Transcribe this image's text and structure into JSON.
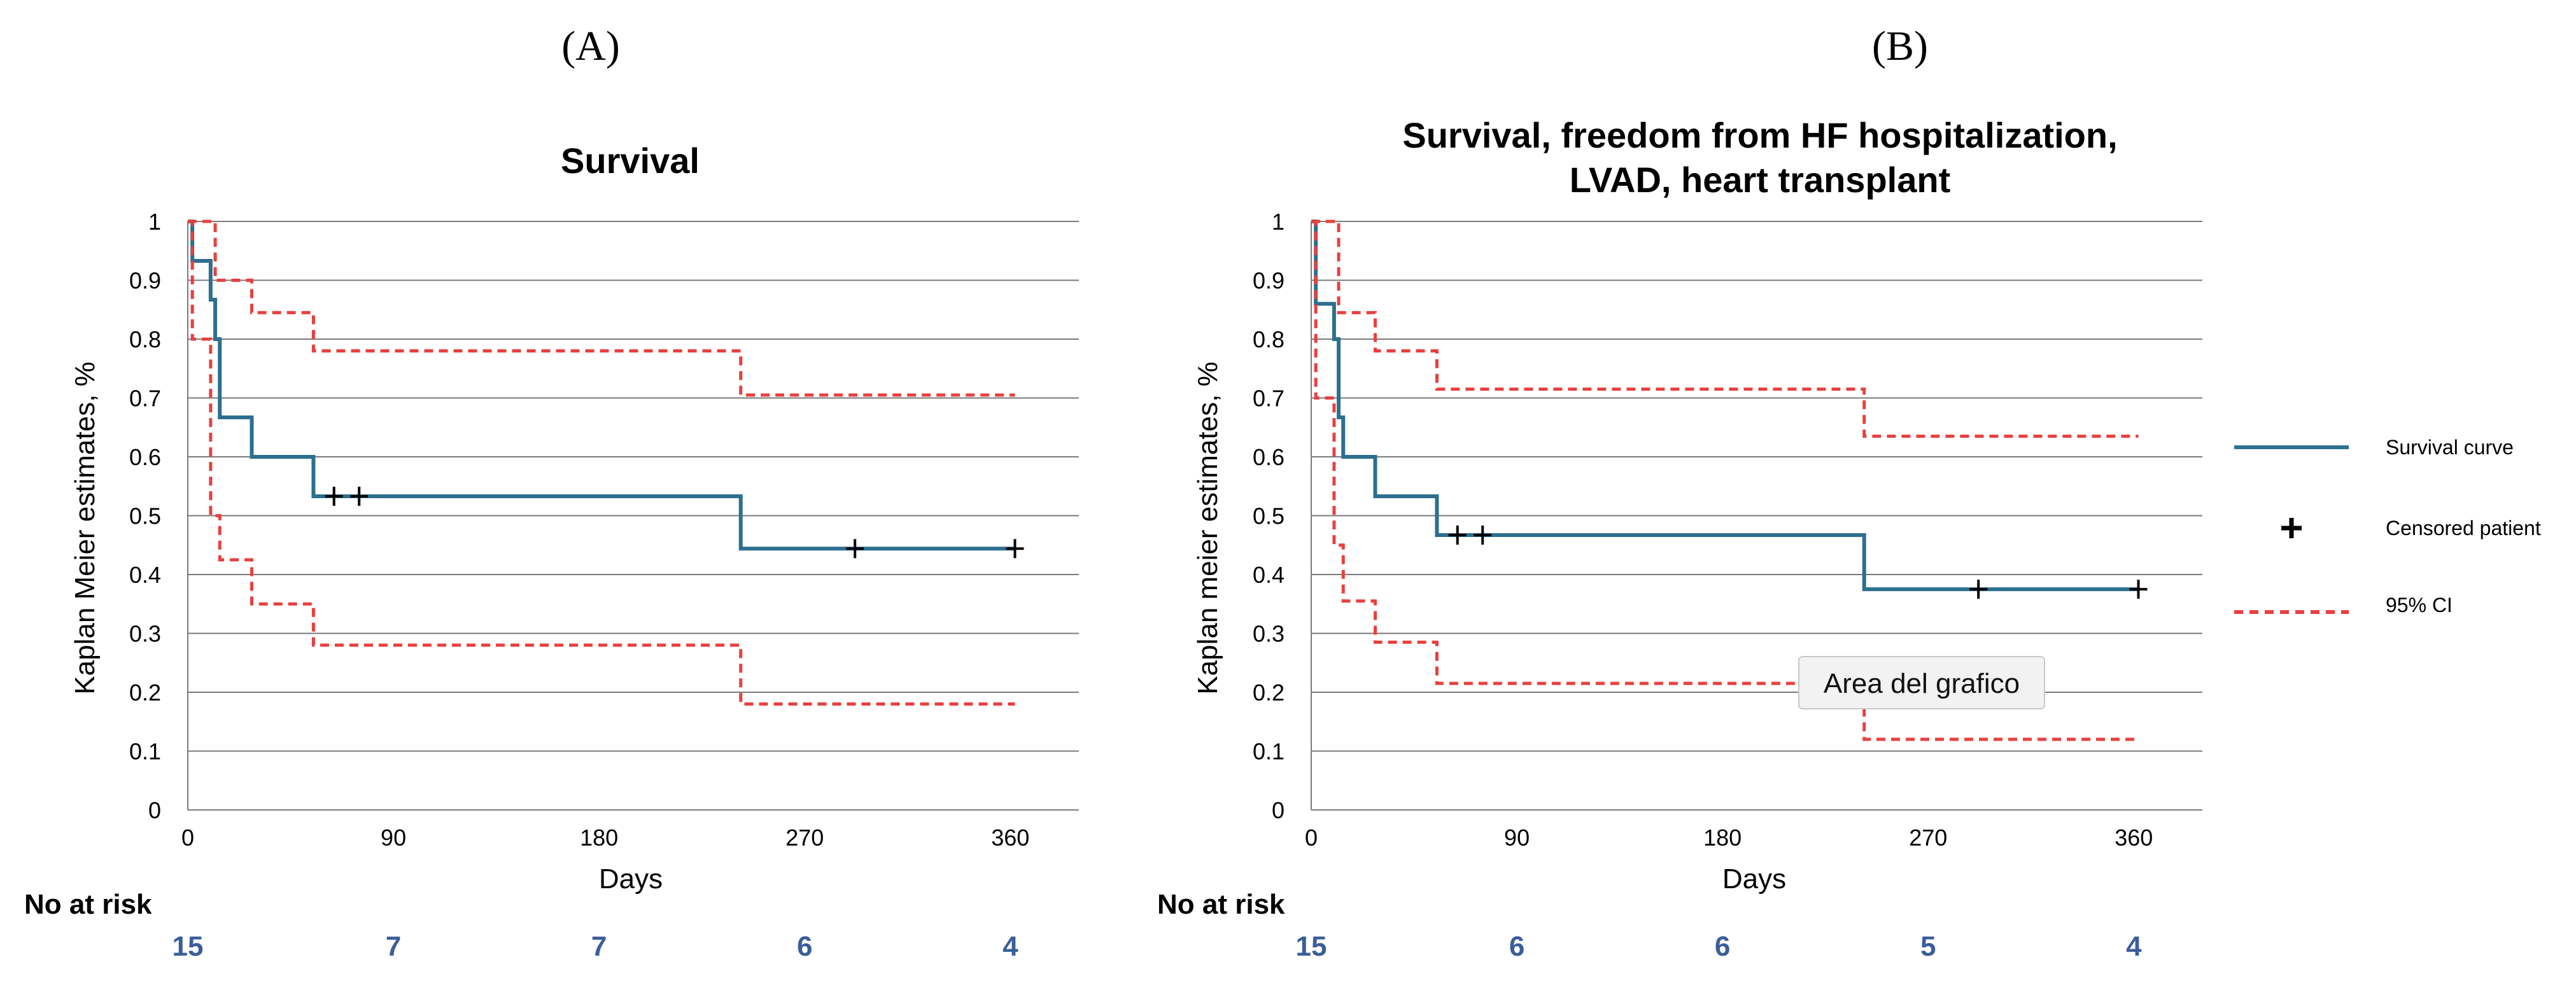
{
  "panels": [
    {
      "label": "(A)"
    },
    {
      "label": "(B)"
    }
  ],
  "legend": {
    "survival": "Survival curve",
    "censored": "Censored patient",
    "ci": "95% CI"
  },
  "tooltip": {
    "text": "Area del grafico"
  },
  "at_risk_header": "No at risk",
  "colors": {
    "survival": "#2c6f8f",
    "ci": "#e8403f",
    "grid": "#7a7a7a",
    "risk": "#3b5e9a"
  },
  "chart_data": [
    {
      "type": "line",
      "title": "Survival",
      "xlabel": "Days",
      "ylabel": "Kaplan Meier estimates, %",
      "xlim": [
        0,
        390
      ],
      "ylim": [
        0,
        1
      ],
      "xticks": [
        "0",
        "90",
        "180",
        "270",
        "360"
      ],
      "yticks": [
        "0",
        "0.1",
        "0.2",
        "0.3",
        "0.4",
        "0.5",
        "0.6",
        "0.7",
        "0.8",
        "0.9",
        "1"
      ],
      "grid": true,
      "series": [
        {
          "name": "Survival curve",
          "step": true,
          "x": [
            0,
            2,
            10,
            12,
            14,
            28,
            55,
            242,
            362
          ],
          "y": [
            1,
            0.933,
            0.867,
            0.8,
            0.667,
            0.6,
            0.533,
            0.444,
            0.444
          ]
        },
        {
          "name": "95% CI",
          "role": "upper",
          "step": true,
          "x": [
            0,
            2,
            12,
            28,
            55,
            242,
            362
          ],
          "y": [
            1,
            1,
            0.9,
            0.845,
            0.78,
            0.705,
            0.705
          ]
        },
        {
          "name": "95% CI",
          "role": "lower",
          "step": true,
          "x": [
            0,
            2,
            10,
            14,
            28,
            55,
            242,
            362
          ],
          "y": [
            1,
            0.8,
            0.5,
            0.425,
            0.35,
            0.28,
            0.18,
            0.18
          ]
        }
      ],
      "censored": [
        {
          "x": 64,
          "y": 0.533
        },
        {
          "x": 75,
          "y": 0.533
        },
        {
          "x": 292,
          "y": 0.444
        },
        {
          "x": 362,
          "y": 0.444
        }
      ],
      "at_risk": {
        "x": [
          0,
          90,
          180,
          270,
          360
        ],
        "values": [
          "15",
          "7",
          "7",
          "6",
          "4"
        ]
      }
    },
    {
      "type": "line",
      "title": "Survival, freedom from HF hospitalization, LVAD, heart transplant",
      "title_lines": [
        "Survival, freedom from HF hospitalization,",
        "LVAD, heart transplant"
      ],
      "xlabel": "Days",
      "ylabel": "Kaplan meier estimates, %",
      "xlim": [
        0,
        390
      ],
      "ylim": [
        0,
        1
      ],
      "xticks": [
        "0",
        "90",
        "180",
        "270",
        "360"
      ],
      "yticks": [
        "0",
        "0.1",
        "0.2",
        "0.3",
        "0.4",
        "0.5",
        "0.6",
        "0.7",
        "0.8",
        "0.9",
        "1"
      ],
      "grid": true,
      "legend_position": "right",
      "series": [
        {
          "name": "Survival curve",
          "step": true,
          "x": [
            0,
            2,
            10,
            12,
            14,
            28,
            55,
            242,
            362
          ],
          "y": [
            1,
            0.86,
            0.8,
            0.667,
            0.6,
            0.533,
            0.467,
            0.375,
            0.375
          ]
        },
        {
          "name": "95% CI",
          "role": "upper",
          "step": true,
          "x": [
            0,
            2,
            12,
            28,
            55,
            242,
            362
          ],
          "y": [
            1,
            1,
            0.845,
            0.78,
            0.715,
            0.635,
            0.635
          ]
        },
        {
          "name": "95% CI",
          "role": "lower",
          "step": true,
          "x": [
            0,
            2,
            10,
            14,
            28,
            55,
            242,
            362
          ],
          "y": [
            1,
            0.7,
            0.45,
            0.355,
            0.285,
            0.215,
            0.12,
            0.12
          ]
        }
      ],
      "censored": [
        {
          "x": 64,
          "y": 0.467
        },
        {
          "x": 75,
          "y": 0.467
        },
        {
          "x": 292,
          "y": 0.375
        },
        {
          "x": 362,
          "y": 0.375
        }
      ],
      "at_risk": {
        "x": [
          0,
          90,
          180,
          270,
          360
        ],
        "values": [
          "15",
          "6",
          "6",
          "5",
          "4"
        ]
      }
    }
  ]
}
